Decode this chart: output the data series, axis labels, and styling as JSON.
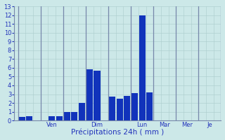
{
  "title": "",
  "xlabel": "Précipitations 24h ( mm )",
  "background_color": "#cce8e8",
  "bar_color": "#1133bb",
  "grid_color": "#aacccc",
  "grid_color_major": "#8899bb",
  "ylim": [
    0,
    13
  ],
  "yticks": [
    0,
    1,
    2,
    3,
    4,
    5,
    6,
    7,
    8,
    9,
    10,
    11,
    12,
    13
  ],
  "xlabel_color": "#2233bb",
  "tick_color": "#2233bb",
  "axis_line_color": "#7788aa",
  "xlabel_fontsize": 7.5,
  "tick_fontsize": 6,
  "days": [
    "",
    "Ven",
    "",
    "Dim",
    "",
    "Lun",
    "Mar",
    "Mer",
    "Je"
  ],
  "num_days": 9,
  "bars_per_day": 3,
  "bar_data": [
    [
      0.4,
      0.5,
      0
    ],
    [
      0,
      0.5,
      0.5
    ],
    [
      1.0,
      1.0,
      2.0
    ],
    [
      5.8,
      5.7,
      0
    ],
    [
      2.7,
      2.5,
      2.8
    ],
    [
      3.1,
      12.0,
      3.2
    ],
    [
      0,
      0,
      0
    ],
    [
      0,
      0,
      0
    ],
    [
      0,
      0,
      0
    ]
  ]
}
